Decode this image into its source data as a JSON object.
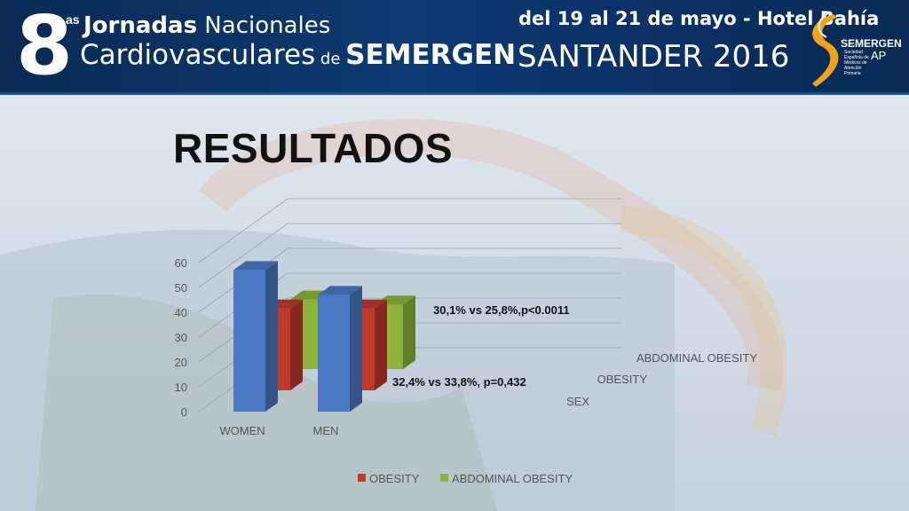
{
  "header": {
    "edition_number": "8",
    "edition_suffix": "as",
    "title_line1_bold": "Jornadas",
    "title_line1_rest": " Nacionales",
    "title_line2_a": "Cardiovasculares",
    "title_line2_de": " de ",
    "title_line2_b": "SEMERGEN",
    "event_dates": "del 19 al 21 de mayo - Hotel Bahía",
    "event_city_year": "SANTANDER 2016",
    "logo_name": "SEMERGEN",
    "logo_ap": "AP",
    "logo_subtitle": "Sociedad Española de Médicos de Atención Primaria",
    "colors": {
      "banner": "#0d3a72",
      "logo_orange": "#f5a21b"
    }
  },
  "slide": {
    "title": "RESULTADOS"
  },
  "chart_data": {
    "type": "bar",
    "style": "3d-clustered",
    "categories": [
      "WOMEN",
      "MEN"
    ],
    "series": [
      {
        "name": "SEX",
        "values": [
          57,
          47
        ],
        "color": "#4a78c2"
      },
      {
        "name": "OBESITY",
        "values": [
          33,
          33
        ],
        "color": "#c0392b"
      },
      {
        "name": "ABDOMINAL OBESITY",
        "values": [
          28,
          26
        ],
        "color": "#8db33a"
      }
    ],
    "depth_axis_labels": [
      "SEX",
      "OBESITY",
      "ABDOMINAL OBESITY"
    ],
    "ylim": [
      0,
      60
    ],
    "yticks": [
      "0",
      "10",
      "20",
      "30",
      "40",
      "50",
      "60"
    ],
    "gridlines": true,
    "legend": {
      "position": "bottom",
      "entries": [
        "OBESITY",
        "ABDOMINAL OBESITY"
      ]
    },
    "annotations": [
      "30,1% vs 25,8%,p<0.0011",
      "32,4% vs 33,8%, p=0,432"
    ]
  }
}
